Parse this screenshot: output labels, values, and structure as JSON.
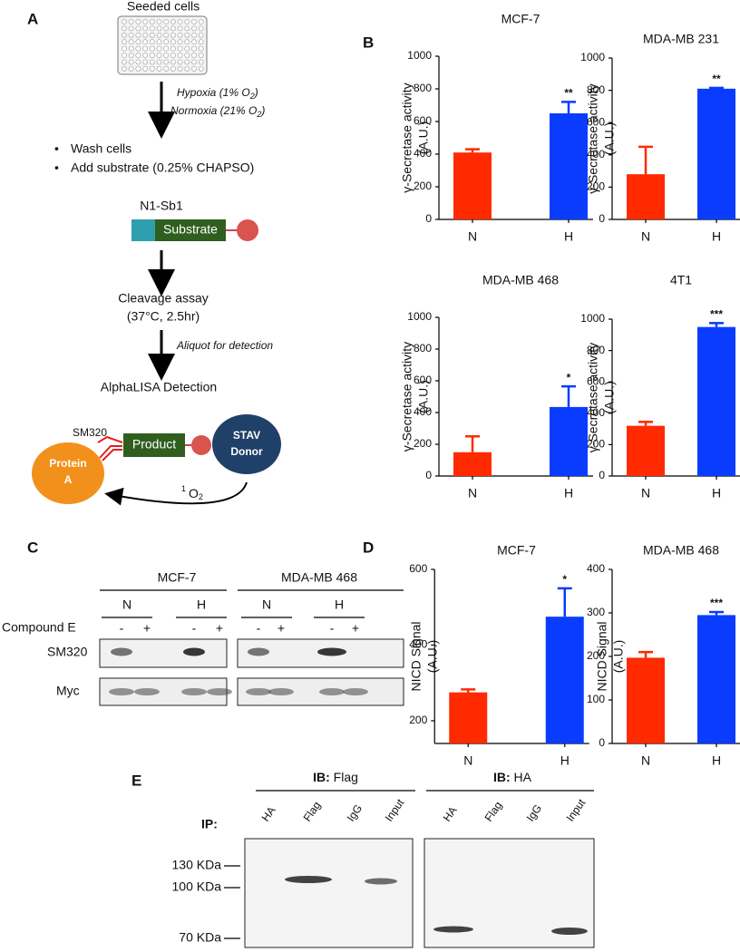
{
  "panel_labels": [
    "A",
    "B",
    "C",
    "D",
    "E"
  ],
  "panel_a": {
    "seeded": "Seeded cells",
    "hypoxia": [
      "Hypoxia (1% O",
      "2",
      ")"
    ],
    "normoxia": [
      "Normoxia (21% O",
      "2",
      ")"
    ],
    "steps": [
      "Wash cells",
      "Add substrate (0.25% CHAPSO)"
    ],
    "construct": "N1-Sb1",
    "substrate": "Substrate",
    "cleavage": [
      "Cleavage assay",
      "(37°C, 2.5hr)"
    ],
    "aliquot": "Aliquot for detection",
    "detection": "AlphaLISA Detection",
    "sm320": "SM320",
    "product": "Product",
    "donor": [
      "STAV",
      "Donor"
    ],
    "protein": [
      "Protein",
      "A"
    ],
    "singlet": [
      "1",
      "O",
      "2"
    ]
  },
  "chart_data": [
    {
      "type": "bar",
      "title": "MCF-7",
      "ylabel": [
        "γ-Secretase activity",
        "(A.U.)"
      ],
      "categories": [
        "N",
        "H"
      ],
      "values": [
        410,
        650
      ],
      "errors": [
        20,
        70
      ],
      "colors": [
        "#ff2a00",
        "#0a3cff"
      ],
      "ylim": [
        0,
        1000
      ],
      "yticks": [
        0,
        200,
        400,
        600,
        800,
        1000
      ],
      "annotation": "**"
    },
    {
      "type": "bar",
      "title": "MDA-MB 231",
      "ylabel": [
        "γ-Secretase activity",
        "(A.U.)"
      ],
      "categories": [
        "N",
        "H"
      ],
      "values": [
        280,
        810
      ],
      "errors": [
        170,
        5
      ],
      "colors": [
        "#ff2a00",
        "#0a3cff"
      ],
      "ylim": [
        0,
        1000
      ],
      "yticks": [
        0,
        200,
        400,
        600,
        800,
        1000
      ],
      "annotation": "**"
    },
    {
      "type": "bar",
      "title": "MDA-MB 468",
      "ylabel": [
        "γ-Secretase activity",
        "(A.U.)"
      ],
      "categories": [
        "N",
        "H"
      ],
      "values": [
        150,
        435
      ],
      "errors": [
        100,
        130
      ],
      "colors": [
        "#ff2a00",
        "#0a3cff"
      ],
      "ylim": [
        0,
        1000
      ],
      "yticks": [
        0,
        200,
        400,
        600,
        800,
        1000
      ],
      "annotation": "*"
    },
    {
      "type": "bar",
      "title": "4T1",
      "ylabel": [
        "γ-Secretase activity",
        "(A.U.)"
      ],
      "categories": [
        "N",
        "H"
      ],
      "values": [
        320,
        950
      ],
      "errors": [
        25,
        25
      ],
      "colors": [
        "#ff2a00",
        "#0a3cff"
      ],
      "ylim": [
        0,
        1000
      ],
      "yticks": [
        0,
        200,
        400,
        600,
        800,
        1000
      ],
      "annotation": "***"
    },
    {
      "type": "bar",
      "title": "MCF-7",
      "ylabel": [
        "NICD Signal",
        "(A.U.)"
      ],
      "categories": [
        "N",
        "H"
      ],
      "values": [
        275,
        475
      ],
      "errors": [
        8,
        75
      ],
      "colors": [
        "#ff2a00",
        "#0a3cff"
      ],
      "ylim": [
        140,
        600
      ],
      "yticks": [
        200,
        400,
        600
      ],
      "annotation": "*"
    },
    {
      "type": "bar",
      "title": "MDA-MB 468",
      "ylabel": [
        "NICD Signal",
        "(A.U.)"
      ],
      "categories": [
        "N",
        "H"
      ],
      "values": [
        197,
        295
      ],
      "errors": [
        13,
        7
      ],
      "colors": [
        "#ff2a00",
        "#0a3cff"
      ],
      "ylim": [
        0,
        400
      ],
      "yticks": [
        0,
        100,
        200,
        300,
        400
      ],
      "annotation": "***"
    }
  ],
  "panel_c": {
    "groups": [
      "MCF-7",
      "MDA-MB 468"
    ],
    "conditions": [
      "N",
      "H",
      "N",
      "H"
    ],
    "treatment": "Compound E",
    "signs": [
      "-",
      "+",
      "-",
      "+",
      "-",
      "+",
      "-",
      "+"
    ],
    "rows": [
      "SM320",
      "Myc"
    ]
  },
  "panel_e": {
    "blots": [
      {
        "ib": "IB:",
        "antibody": "Flag"
      },
      {
        "ib": "IB:",
        "antibody": "HA"
      }
    ],
    "ip": "IP:",
    "lanes": [
      [
        "HA",
        "Flag",
        "IgG",
        "Input"
      ],
      [
        "HA",
        "Flag",
        "IgG",
        "Input"
      ]
    ],
    "markers": [
      "130 KDa",
      "100 KDa",
      "70 KDa"
    ]
  }
}
